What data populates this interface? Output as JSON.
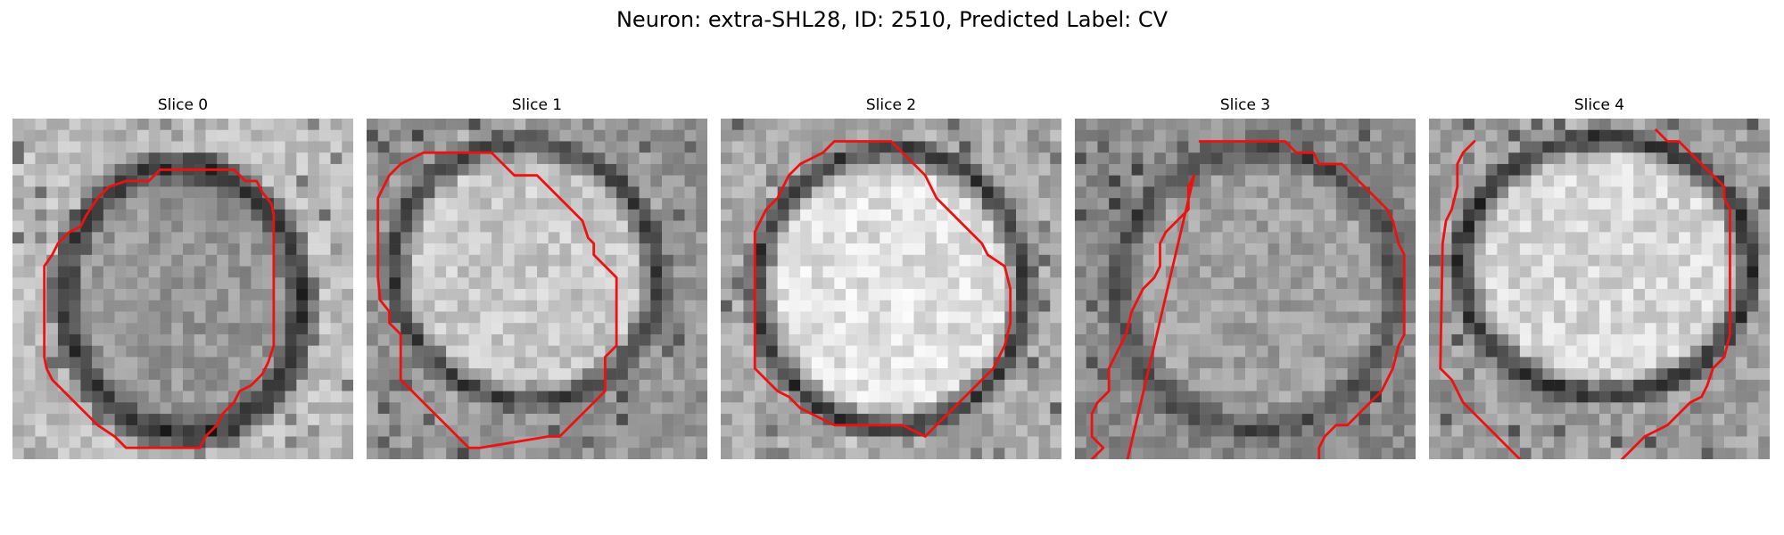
{
  "figure": {
    "title": "Neuron: extra-SHL28, ID: 2510, Predicted Label: CV"
  },
  "panels": [
    {
      "title": "Slice 0"
    },
    {
      "title": "Slice 1"
    },
    {
      "title": "Slice 2"
    },
    {
      "title": "Slice 3"
    },
    {
      "title": "Slice 4"
    }
  ],
  "colors": {
    "contour": "#ee1111",
    "background": "#ffffff"
  }
}
